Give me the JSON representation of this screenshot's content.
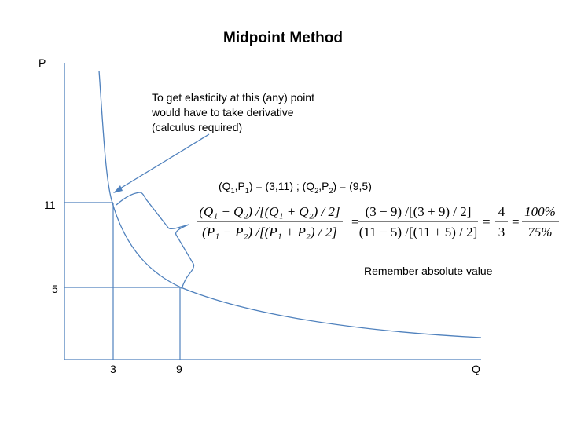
{
  "title": "Midpoint Method",
  "axes": {
    "y_label": "P",
    "x_label": "Q",
    "y_ticks": [
      "11",
      "5"
    ],
    "x_ticks": [
      "3",
      "9"
    ]
  },
  "annotation": {
    "line1": "To get elasticity at this (any) point",
    "line2": "would have to take derivative",
    "line3": "(calculus required)"
  },
  "points": {
    "q1_letter": "(Q",
    "q1_sub": "1",
    "p1_letter": ",P",
    "p1_sub": "1",
    "p1_close": ") = (3,11) ; (Q",
    "q2_sub": "2",
    "p2_letter": ",P",
    "p2_sub": "2",
    "p2_close": ") = (9,5)"
  },
  "formula": {
    "lhs_num": "(Q₁ − Q₂) /[(Q₁ + Q₂) / 2]",
    "lhs_den": "(P₁ − P₂) /[(P₁ + P₂) / 2]",
    "mid_num": "(3 − 9) /[(3 + 9) / 2]",
    "mid_den": "(11 − 5) /[(11 + 5) / 2]",
    "frac1_num": "4",
    "frac1_den": "3",
    "frac2_num": "100%",
    "frac2_den": "75%",
    "eq": "="
  },
  "reminder": "Remember absolute value",
  "colors": {
    "lines": "#4f81bd"
  }
}
